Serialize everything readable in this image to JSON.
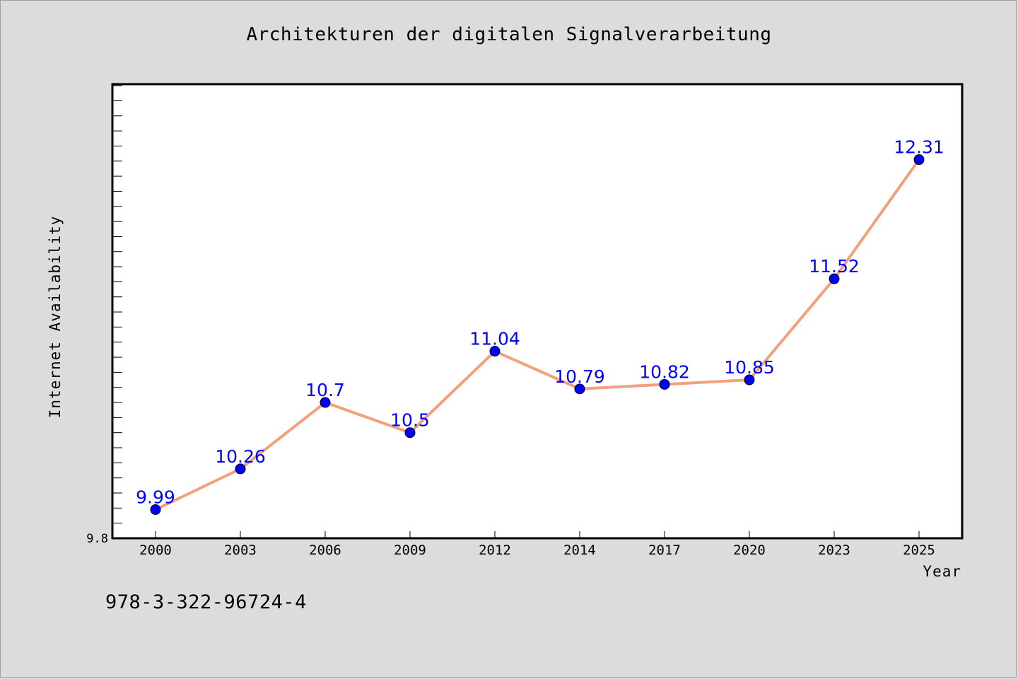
{
  "colors": {
    "background": "#dcdcdc",
    "plot_background": "#ffffff",
    "line": "#f4a07c",
    "marker": "#0000ff",
    "label": "#0000ff"
  },
  "footnote": "978-3-322-96724-4",
  "chart_data": {
    "type": "line",
    "title": "Architekturen der digitalen Signalverarbeitung",
    "xlabel": "Year",
    "ylabel": "Internet Availability",
    "categories": [
      "2000",
      "2003",
      "2006",
      "2009",
      "2012",
      "2014",
      "2017",
      "2020",
      "2023",
      "2025"
    ],
    "series": [
      {
        "values": [
          9.99,
          10.26,
          10.7,
          10.5,
          11.04,
          10.79,
          10.82,
          10.85,
          11.52,
          12.31
        ],
        "labels": [
          "9.99",
          "10.26",
          "10.7",
          "10.5",
          "11.04",
          "10.79",
          "10.82",
          "10.85",
          "11.52",
          "12.31"
        ]
      }
    ],
    "ylim": [
      9.8,
      12.81
    ],
    "yticks_labeled": [
      "9.8"
    ],
    "grid": false,
    "legend": "none"
  }
}
